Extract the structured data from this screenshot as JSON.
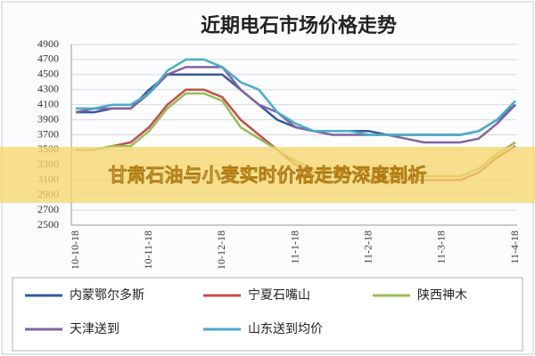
{
  "chart_data": {
    "type": "line",
    "title": "近期电石市场价格走势",
    "annotation": "甘肃石油与小麦实时价格走势深度剖析",
    "categories": [
      "10-10-18",
      null,
      null,
      null,
      "10-11-18",
      null,
      null,
      null,
      "10-12-18",
      null,
      null,
      null,
      "11-1-18",
      null,
      null,
      null,
      "11-2-18",
      null,
      null,
      null,
      "11-3-18",
      null,
      null,
      null,
      "11-4-18"
    ],
    "ylim": [
      2500,
      4900
    ],
    "yticks": [
      2500,
      2700,
      2900,
      3100,
      3300,
      3500,
      3700,
      3900,
      4100,
      4300,
      4500,
      4700,
      4900
    ],
    "grid": true,
    "series": [
      {
        "name": "内蒙鄂尔多斯",
        "color": "#3a5a9c",
        "values": [
          4000,
          4000,
          4050,
          4050,
          4300,
          4500,
          4500,
          4500,
          4500,
          4300,
          4100,
          3900,
          3800,
          3750,
          3750,
          3750,
          3750,
          3700,
          3700,
          3700,
          3700,
          3700,
          3750,
          3900,
          4100
        ]
      },
      {
        "name": "宁夏石嘴山",
        "color": "#c0504d",
        "values": [
          3500,
          3500,
          3550,
          3600,
          3800,
          4100,
          4300,
          4300,
          4200,
          3900,
          3700,
          3500,
          3300,
          3200,
          3200,
          3200,
          3100,
          3100,
          3100,
          3100,
          3100,
          3100,
          3200,
          3400,
          3550
        ]
      },
      {
        "name": "陕西神木",
        "color": "#9bbb59",
        "values": [
          3500,
          3500,
          3550,
          3550,
          3750,
          4050,
          4250,
          4250,
          4150,
          3800,
          3650,
          3500,
          3350,
          3250,
          3200,
          3200,
          3150,
          3150,
          3150,
          3150,
          3150,
          3150,
          3250,
          3450,
          3600
        ]
      },
      {
        "name": "天津送到",
        "color": "#8064a2",
        "values": [
          4000,
          4050,
          4050,
          4050,
          4250,
          4500,
          4600,
          4600,
          4600,
          4300,
          4100,
          4000,
          3800,
          3750,
          3700,
          3700,
          3700,
          3700,
          3650,
          3600,
          3600,
          3600,
          3650,
          3850,
          4100
        ]
      },
      {
        "name": "山东送到均价",
        "color": "#4bacc6",
        "values": [
          4050,
          4050,
          4100,
          4100,
          4250,
          4550,
          4700,
          4700,
          4600,
          4400,
          4300,
          4000,
          3850,
          3750,
          3750,
          3750,
          3700,
          3700,
          3700,
          3700,
          3700,
          3700,
          3750,
          3900,
          4150
        ]
      }
    ]
  }
}
